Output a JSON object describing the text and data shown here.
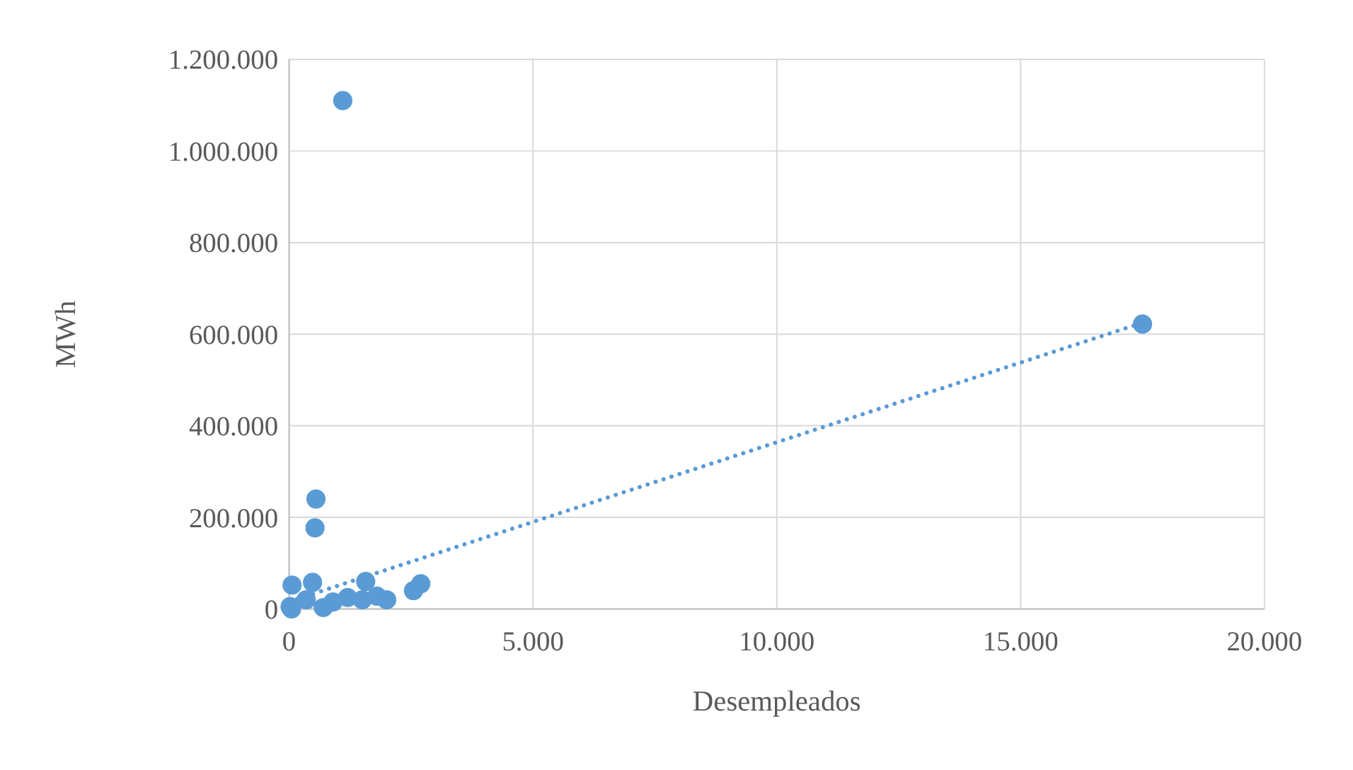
{
  "chart_data": {
    "type": "scatter",
    "xlabel": "Desempleados",
    "ylabel": "MWh",
    "grid": true,
    "marker": "circle",
    "xlim": [
      0,
      20000
    ],
    "xticks": [
      {
        "value": 0,
        "label": "0"
      },
      {
        "value": 5000,
        "label": "5.000"
      },
      {
        "value": 10000,
        "label": "10.000"
      },
      {
        "value": 15000,
        "label": "15.000"
      },
      {
        "value": 20000,
        "label": "20.000"
      }
    ],
    "ylim": [
      0,
      1200000
    ],
    "yticks": [
      {
        "value": 0,
        "label": "0"
      },
      {
        "value": 200000,
        "label": "200.000"
      },
      {
        "value": 400000,
        "label": "400.000"
      },
      {
        "value": 600000,
        "label": "600.000"
      },
      {
        "value": 800000,
        "label": "800.000"
      },
      {
        "value": 1000000,
        "label": "1.000.000"
      },
      {
        "value": 1200000,
        "label": "1.200.000"
      }
    ],
    "series": [
      {
        "color": "#5b9bd5",
        "x": [
          1100,
          17500,
          550,
          530,
          60,
          480,
          1570,
          2700,
          2550,
          2000,
          1500,
          1200,
          900,
          50,
          20,
          700,
          1800,
          350
        ],
        "values": [
          1110000,
          622000,
          240000,
          177000,
          52000,
          58000,
          60000,
          55000,
          40000,
          20000,
          20000,
          25000,
          15000,
          0,
          5000,
          3000,
          28000,
          20000
        ]
      },
      {
        "type": "line",
        "color": "#5b9bd5",
        "line_style": "dotted",
        "marker": "none",
        "x": [
          0,
          17500
        ],
        "values": [
          16000,
          625000
        ]
      }
    ]
  }
}
